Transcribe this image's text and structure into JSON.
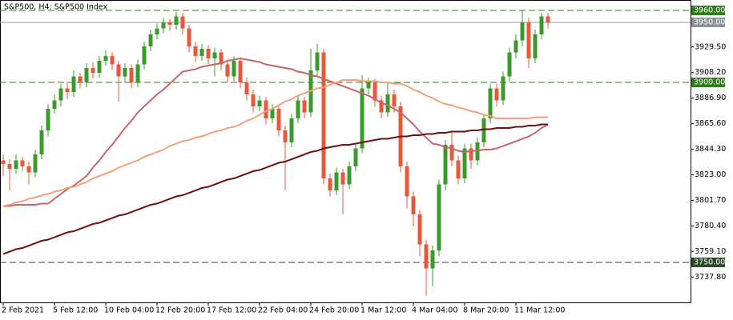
{
  "chart_data": {
    "type": "candlestick",
    "title": "S&P500, H4:  S&P500 Index",
    "categories": [
      "2 Feb 2021",
      null,
      null,
      null,
      null,
      null,
      null,
      null,
      "5 Feb 12:00",
      null,
      null,
      null,
      null,
      null,
      null,
      null,
      "10 Feb 04:00",
      null,
      null,
      null,
      null,
      null,
      null,
      null,
      "12 Feb 20:00",
      null,
      null,
      null,
      null,
      null,
      null,
      null,
      "17 Feb 12:00",
      null,
      null,
      null,
      null,
      null,
      null,
      null,
      "22 Feb 04:00",
      null,
      null,
      null,
      null,
      null,
      null,
      null,
      "24 Feb 20:00",
      null,
      null,
      null,
      null,
      null,
      null,
      null,
      "1 Mar 12:00",
      null,
      null,
      null,
      null,
      null,
      null,
      null,
      "4 Mar 04:00",
      null,
      null,
      null,
      null,
      null,
      null,
      null,
      "8 Mar 20:00",
      null,
      null,
      null,
      null,
      null,
      null,
      null,
      "11 Mar 12:00",
      null,
      null,
      null,
      null,
      null
    ],
    "open": [
      3835,
      3832,
      3828,
      3835,
      3830,
      3825,
      3840,
      3860,
      3878,
      3885,
      3895,
      3892,
      3905,
      3900,
      3912,
      3908,
      3918,
      3922,
      3915,
      3905,
      3912,
      3900,
      3915,
      3930,
      3940,
      3945,
      3950,
      3948,
      3955,
      3945,
      3930,
      3922,
      3928,
      3920,
      3925,
      3915,
      3905,
      3918,
      3900,
      3890,
      3880,
      3885,
      3870,
      3878,
      3860,
      3850,
      3870,
      3885,
      3875,
      3910,
      3925,
      3820,
      3810,
      3825,
      3815,
      3830,
      3845,
      3895,
      3900,
      3885,
      3875,
      3890,
      3880,
      3830,
      3805,
      3790,
      3765,
      3745,
      3760,
      3815,
      3848,
      3835,
      3820,
      3845,
      3835,
      3850,
      3870,
      3895,
      3885,
      3905,
      3925,
      3935,
      3950,
      3920,
      3940,
      3955
    ],
    "high": [
      3840,
      3836,
      3840,
      3838,
      3834,
      3844,
      3864,
      3882,
      3890,
      3899,
      3900,
      3910,
      3908,
      3916,
      3917,
      3922,
      3927,
      3925,
      3918,
      3916,
      3915,
      3919,
      3934,
      3944,
      3949,
      3954,
      3953,
      3959,
      3958,
      3948,
      3934,
      3932,
      3931,
      3929,
      3928,
      3918,
      3922,
      3921,
      3904,
      3894,
      3889,
      3888,
      3882,
      3881,
      3864,
      3874,
      3889,
      3888,
      3928,
      3932,
      3928,
      3824,
      3829,
      3828,
      3834,
      3849,
      3906,
      3904,
      3903,
      3889,
      3900,
      3894,
      3884,
      3834,
      3809,
      3794,
      3769,
      3764,
      3819,
      3852,
      3860,
      3839,
      3849,
      3849,
      3854,
      3874,
      3899,
      3899,
      3909,
      3929,
      3940,
      3960,
      3954,
      3944,
      3958,
      3958
    ],
    "low": [
      3822,
      3810,
      3824,
      3826,
      3815,
      3821,
      3836,
      3855,
      3874,
      3880,
      3886,
      3888,
      3895,
      3896,
      3903,
      3904,
      3914,
      3910,
      3884,
      3900,
      3895,
      3896,
      3911,
      3926,
      3936,
      3941,
      3943,
      3944,
      3940,
      3925,
      3917,
      3918,
      3915,
      3905,
      3910,
      3900,
      3901,
      3895,
      3885,
      3875,
      3876,
      3865,
      3866,
      3855,
      3810,
      3846,
      3866,
      3870,
      3871,
      3905,
      3815,
      3805,
      3806,
      3790,
      3811,
      3826,
      3841,
      3890,
      3880,
      3870,
      3871,
      3875,
      3825,
      3795,
      3780,
      3755,
      3722,
      3730,
      3755,
      3810,
      3830,
      3815,
      3816,
      3828,
      3831,
      3846,
      3866,
      3880,
      3881,
      3901,
      3920,
      3930,
      3912,
      3916,
      3936,
      3945
    ],
    "close": [
      3832,
      3828,
      3835,
      3830,
      3825,
      3840,
      3860,
      3878,
      3885,
      3895,
      3892,
      3905,
      3900,
      3912,
      3908,
      3918,
      3922,
      3915,
      3905,
      3912,
      3900,
      3915,
      3930,
      3940,
      3945,
      3950,
      3948,
      3955,
      3945,
      3930,
      3922,
      3928,
      3920,
      3925,
      3915,
      3905,
      3918,
      3900,
      3890,
      3880,
      3885,
      3870,
      3878,
      3860,
      3850,
      3870,
      3885,
      3875,
      3910,
      3925,
      3820,
      3810,
      3825,
      3815,
      3830,
      3845,
      3895,
      3900,
      3885,
      3875,
      3890,
      3880,
      3830,
      3805,
      3790,
      3765,
      3745,
      3760,
      3815,
      3848,
      3835,
      3820,
      3845,
      3835,
      3850,
      3870,
      3895,
      3885,
      3905,
      3925,
      3935,
      3950,
      3920,
      3940,
      3955,
      3950
    ],
    "up_color": "#3c9a2c",
    "down_color": "#e9573a",
    "series": [
      {
        "color": "#c8646a",
        "values": [
          3797,
          3797,
          3798,
          3798,
          3798,
          3798,
          3799,
          3799,
          3803,
          3807,
          3811,
          3814,
          3818,
          3822,
          3829,
          3835,
          3842,
          3848,
          3855,
          3862,
          3868,
          3875,
          3880,
          3885,
          3890,
          3894,
          3899,
          3904,
          3909,
          3910,
          3911,
          3913,
          3914,
          3915,
          3916,
          3918,
          3919,
          3920,
          3919,
          3918,
          3917,
          3915,
          3914,
          3913,
          3912,
          3911,
          3909,
          3908,
          3906,
          3905,
          3903,
          3901,
          3899,
          3897,
          3895,
          3893,
          3891,
          3889,
          3886,
          3883,
          3881,
          3878,
          3875,
          3870,
          3865,
          3859,
          3854,
          3849,
          3848,
          3846,
          3845,
          3843,
          3842,
          3843,
          3843,
          3844,
          3844,
          3845,
          3847,
          3849,
          3851,
          3853,
          3855,
          3858,
          3862,
          3865
        ]
      },
      {
        "color": "#f4a07a",
        "values": [
          3797,
          3798,
          3800,
          3801,
          3803,
          3804,
          3806,
          3807,
          3809,
          3810,
          3812,
          3813,
          3815,
          3817,
          3820,
          3822,
          3824,
          3826,
          3829,
          3831,
          3833,
          3835,
          3838,
          3840,
          3842,
          3844,
          3847,
          3849,
          3851,
          3852,
          3854,
          3855,
          3857,
          3859,
          3860,
          3862,
          3863,
          3865,
          3868,
          3870,
          3873,
          3876,
          3878,
          3881,
          3884,
          3886,
          3889,
          3891,
          3893,
          3895,
          3896,
          3898,
          3900,
          3902,
          3902,
          3902,
          3901,
          3901,
          3901,
          3900,
          3900,
          3899,
          3899,
          3897,
          3894,
          3892,
          3889,
          3887,
          3884,
          3882,
          3881,
          3879,
          3878,
          3876,
          3875,
          3873,
          3872,
          3870,
          3870,
          3870,
          3870,
          3870,
          3870,
          3871,
          3871,
          3871
        ]
      },
      {
        "color": "#6e1010",
        "values": [
          3757,
          3759,
          3761,
          3762,
          3764,
          3766,
          3768,
          3769,
          3771,
          3773,
          3775,
          3776,
          3778,
          3780,
          3782,
          3783,
          3785,
          3787,
          3789,
          3790,
          3792,
          3794,
          3796,
          3798,
          3799,
          3801,
          3803,
          3805,
          3806,
          3808,
          3810,
          3812,
          3813,
          3815,
          3817,
          3819,
          3820,
          3822,
          3824,
          3826,
          3827,
          3829,
          3831,
          3833,
          3834,
          3836,
          3838,
          3840,
          3842,
          3843,
          3845,
          3846,
          3847,
          3848,
          3848,
          3849,
          3850,
          3851,
          3852,
          3853,
          3853,
          3854,
          3855,
          3855,
          3856,
          3856,
          3857,
          3857,
          3858,
          3858,
          3859,
          3859,
          3859,
          3860,
          3860,
          3861,
          3861,
          3862,
          3862,
          3862,
          3863,
          3863,
          3864,
          3864,
          3865,
          3865
        ]
      }
    ],
    "levels": [
      {
        "value": 3960,
        "label": "3960.00",
        "color": "#2f7d1f",
        "dashed": true
      },
      {
        "value": 3950,
        "label": "3950.00",
        "color": "#8a949c",
        "dashed": false
      },
      {
        "value": 3900,
        "label": "3900.00",
        "color": "#2f7d1f",
        "dashed": true
      },
      {
        "value": 3750,
        "label": "3750.00",
        "color": "#2e4a2e",
        "dashed": true
      }
    ],
    "ylim": [
      3716.67,
      3968.67
    ],
    "yticks": [
      {
        "value": 3929.5,
        "label": "3929.50"
      },
      {
        "value": 3908.2,
        "label": "3908.20"
      },
      {
        "value": 3886.9,
        "label": "3886.90"
      },
      {
        "value": 3865.6,
        "label": "3865.60"
      },
      {
        "value": 3844.3,
        "label": "3844.30"
      },
      {
        "value": 3823,
        "label": "3823.00"
      },
      {
        "value": 3801.7,
        "label": "3801.70"
      },
      {
        "value": 3780.4,
        "label": "3780.40"
      },
      {
        "value": 3759.1,
        "label": "3759.10"
      },
      {
        "value": 3737.8,
        "label": "3737.80"
      }
    ]
  }
}
